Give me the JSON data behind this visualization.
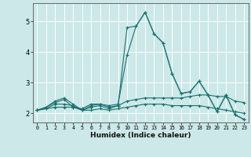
{
  "xlabel": "Humidex (Indice chaleur)",
  "bg_color": "#cce8e8",
  "grid_color": "#ffffff",
  "line_color": "#1a7070",
  "xlim": [
    -0.5,
    23.5
  ],
  "ylim": [
    1.7,
    5.6
  ],
  "yticks": [
    2,
    3,
    4,
    5
  ],
  "xticks": [
    0,
    1,
    2,
    3,
    4,
    5,
    6,
    7,
    8,
    9,
    10,
    11,
    12,
    13,
    14,
    15,
    16,
    17,
    18,
    19,
    20,
    21,
    22,
    23
  ],
  "series": [
    [
      2.1,
      2.2,
      2.4,
      2.5,
      2.3,
      2.1,
      2.25,
      2.3,
      2.2,
      2.25,
      4.8,
      4.85,
      5.3,
      4.6,
      4.3,
      3.3,
      2.65,
      2.7,
      3.05,
      2.6,
      2.05,
      2.6,
      1.95,
      1.8
    ],
    [
      2.1,
      2.2,
      2.35,
      2.45,
      2.2,
      2.15,
      2.3,
      2.3,
      2.25,
      2.3,
      3.9,
      4.85,
      5.3,
      4.6,
      4.3,
      3.3,
      2.65,
      2.7,
      3.05,
      2.6,
      2.05,
      2.6,
      1.95,
      1.8
    ],
    [
      2.1,
      2.15,
      2.3,
      2.3,
      2.25,
      2.1,
      2.2,
      2.25,
      2.15,
      2.25,
      2.4,
      2.45,
      2.5,
      2.5,
      2.5,
      2.5,
      2.5,
      2.55,
      2.6,
      2.6,
      2.55,
      2.55,
      2.4,
      2.35
    ],
    [
      2.1,
      2.15,
      2.2,
      2.2,
      2.2,
      2.1,
      2.1,
      2.15,
      2.1,
      2.15,
      2.2,
      2.25,
      2.3,
      2.3,
      2.3,
      2.25,
      2.25,
      2.25,
      2.25,
      2.2,
      2.15,
      2.1,
      2.05,
      2.0
    ]
  ],
  "figsize": [
    3.2,
    2.0
  ],
  "dpi": 100
}
